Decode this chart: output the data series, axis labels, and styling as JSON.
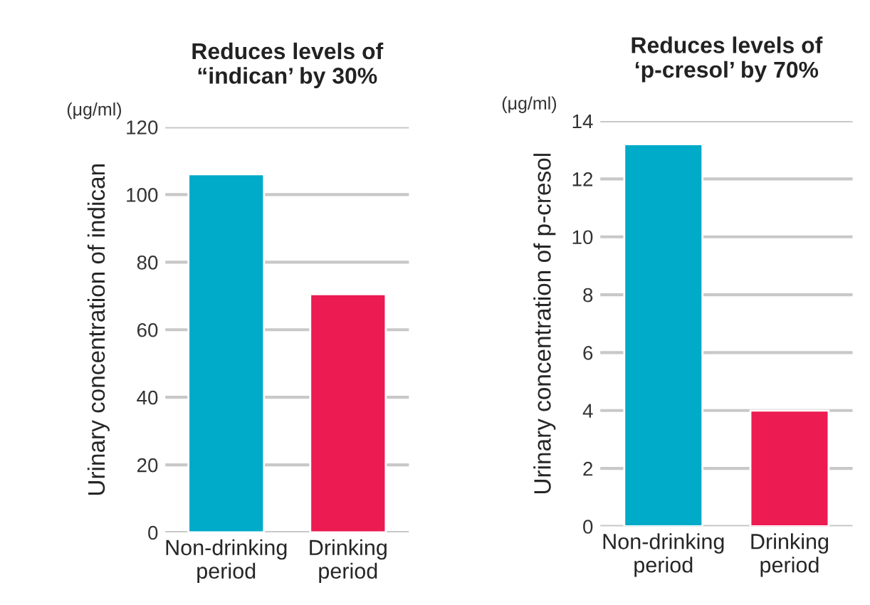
{
  "chart_data": [
    {
      "type": "bar",
      "title": "Reduces levels of\n“indican’ by 30%",
      "ylabel": "Urinary concentration of indican",
      "annotations": [
        "(μg/ml)"
      ],
      "categories": [
        "Non-drinking\nperiod",
        "Drinking\nperiod"
      ],
      "values": [
        106,
        70.5
      ],
      "colors": [
        "#00aac9",
        "#ec1b52"
      ],
      "ylim": [
        0,
        120
      ],
      "yticks": [
        0,
        20,
        40,
        60,
        80,
        100,
        120
      ],
      "grid": "y"
    },
    {
      "type": "bar",
      "title": "Reduces levels of\n‘p-cresol’ by 70%",
      "ylabel": "Urinary concentration of p-cresol",
      "annotations": [
        "(μg/ml)"
      ],
      "categories": [
        "Non-drinking\nperiod",
        "Drinking\nperiod"
      ],
      "values": [
        13.2,
        4.0
      ],
      "colors": [
        "#00aac9",
        "#ec1b52"
      ],
      "ylim": [
        0,
        14
      ],
      "yticks": [
        0,
        2,
        4,
        6,
        8,
        10,
        12,
        14
      ],
      "grid": "y"
    }
  ]
}
